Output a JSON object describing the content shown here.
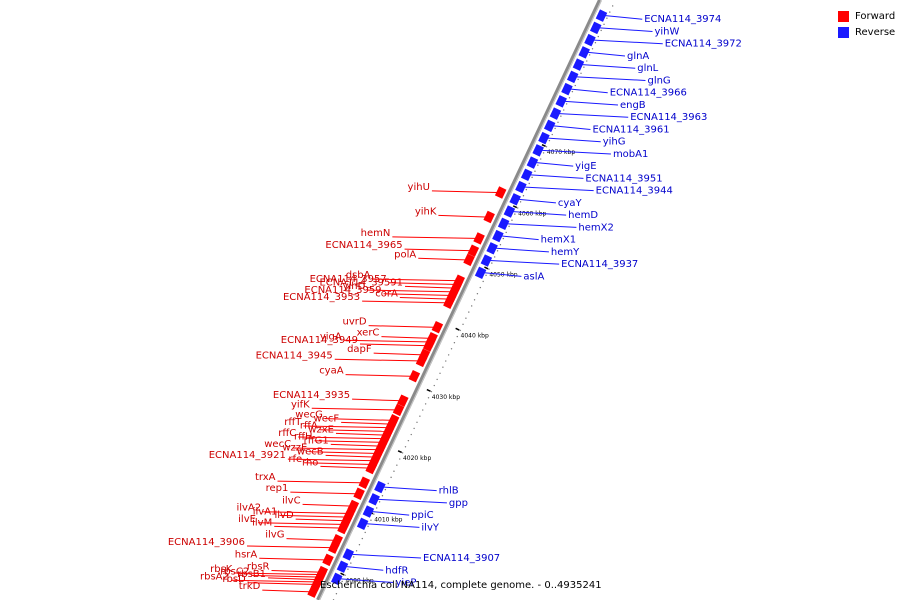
{
  "caption": "Escherichia coli NA114, complete genome. - 0..4935241",
  "colors": {
    "forward": "#ff0000",
    "reverse": "#1a1aff",
    "forward_label": "#cc0000",
    "reverse_label": "#0000cc",
    "backbone": "#8a8a8a"
  },
  "legend": [
    {
      "label": "Forward",
      "color": "#ff0000"
    },
    {
      "label": "Reverse",
      "color": "#1a1aff"
    }
  ],
  "map": {
    "start_kbp": 3995,
    "end_kbp": 4093,
    "ticks": [
      {
        "kbp": 4000,
        "label": "4000 kbp"
      },
      {
        "kbp": 4010,
        "label": "4010 kbp"
      },
      {
        "kbp": 4020,
        "label": "4020 kbp"
      },
      {
        "kbp": 4030,
        "label": "4030 kbp"
      },
      {
        "kbp": 4040,
        "label": "4040 kbp"
      },
      {
        "kbp": 4050,
        "label": "4050 kbp"
      },
      {
        "kbp": 4060,
        "label": "4060 kbp"
      },
      {
        "kbp": 4070,
        "label": "4070 kbp"
      }
    ]
  },
  "forward_genes": [
    {
      "name": "trkD",
      "kbp": 3995.8
    },
    {
      "name": "rbsD",
      "kbp": 3997.0
    },
    {
      "name": "rbsA2",
      "kbp": 3997.4
    },
    {
      "name": "rbsB1",
      "kbp": 3997.8
    },
    {
      "name": "rbsC2",
      "kbp": 3998.2
    },
    {
      "name": "rbsK",
      "kbp": 3998.6
    },
    {
      "name": "rbsR",
      "kbp": 3999.0
    },
    {
      "name": "hsrA",
      "kbp": 4001.0
    },
    {
      "name": "ECNA114_3906",
      "kbp": 4003.0
    },
    {
      "name": "ilvG",
      "kbp": 4004.2
    },
    {
      "name": "ilvM",
      "kbp": 4006.2
    },
    {
      "name": "ilvE",
      "kbp": 4006.8
    },
    {
      "name": "ilvD",
      "kbp": 4007.4
    },
    {
      "name": "ilvA1",
      "kbp": 4008.0
    },
    {
      "name": "ilvA2",
      "kbp": 4008.6
    },
    {
      "name": "ilvC",
      "kbp": 4009.8
    },
    {
      "name": "rep1",
      "kbp": 4011.8
    },
    {
      "name": "trxA",
      "kbp": 4013.6
    },
    {
      "name": "rho",
      "kbp": 4016.0
    },
    {
      "name": "rfe",
      "kbp": 4016.6
    },
    {
      "name": "ECNA114_3921",
      "kbp": 4017.2
    },
    {
      "name": "wecB",
      "kbp": 4017.8
    },
    {
      "name": "wzzE",
      "kbp": 4018.4
    },
    {
      "name": "wecC",
      "kbp": 4019.0
    },
    {
      "name": "rffG1",
      "kbp": 4019.6
    },
    {
      "name": "rffH",
      "kbp": 4020.2
    },
    {
      "name": "rffC",
      "kbp": 4020.8
    },
    {
      "name": "wzxE",
      "kbp": 4021.4
    },
    {
      "name": "rffA",
      "kbp": 4022.0
    },
    {
      "name": "rffT",
      "kbp": 4022.6
    },
    {
      "name": "wecF",
      "kbp": 4023.2
    },
    {
      "name": "wecG",
      "kbp": 4023.8
    },
    {
      "name": "yifK",
      "kbp": 4025.5
    },
    {
      "name": "ECNA114_3935",
      "kbp": 4027.0
    },
    {
      "name": "cyaA",
      "kbp": 4031.0
    },
    {
      "name": "ECNA114_3945",
      "kbp": 4033.5
    },
    {
      "name": "dapF",
      "kbp": 4034.5
    },
    {
      "name": "ECNA114_3949",
      "kbp": 4036.0
    },
    {
      "name": "yigA",
      "kbp": 4036.6
    },
    {
      "name": "xerC",
      "kbp": 4037.2
    },
    {
      "name": "uvrD",
      "kbp": 4039.0
    },
    {
      "name": "ECNA114_3953",
      "kbp": 4043.0
    },
    {
      "name": "corA",
      "kbp": 4043.6
    },
    {
      "name": "ECNA114_3959",
      "kbp": 4044.2
    },
    {
      "name": "yihD",
      "kbp": 4044.8
    },
    {
      "name": "ECNA114_39591",
      "kbp": 4045.4
    },
    {
      "name": "ECNA114_3957",
      "kbp": 4046.0
    },
    {
      "name": "dsbA",
      "kbp": 4046.6
    },
    {
      "name": "polA",
      "kbp": 4050.0
    },
    {
      "name": "ECNA114_3965",
      "kbp": 4051.5
    },
    {
      "name": "hemN",
      "kbp": 4053.5
    },
    {
      "name": "yihK",
      "kbp": 4057.0
    },
    {
      "name": "yihU",
      "kbp": 4061.0
    }
  ],
  "reverse_genes": [
    {
      "name": "ECNA114_3974",
      "kbp": 4091.0
    },
    {
      "name": "yihW",
      "kbp": 4089.0
    },
    {
      "name": "ECNA114_3972",
      "kbp": 4087.0
    },
    {
      "name": "glnA",
      "kbp": 4085.0
    },
    {
      "name": "glnL",
      "kbp": 4083.0
    },
    {
      "name": "glnG",
      "kbp": 4081.0
    },
    {
      "name": "ECNA114_3966",
      "kbp": 4079.0
    },
    {
      "name": "engB",
      "kbp": 4077.0
    },
    {
      "name": "ECNA114_3963",
      "kbp": 4075.0
    },
    {
      "name": "ECNA114_3961",
      "kbp": 4073.0
    },
    {
      "name": "yihG",
      "kbp": 4071.0
    },
    {
      "name": "mobA1",
      "kbp": 4069.0
    },
    {
      "name": "yigE",
      "kbp": 4067.0
    },
    {
      "name": "ECNA114_3951",
      "kbp": 4065.0
    },
    {
      "name": "ECNA114_3944",
      "kbp": 4063.0
    },
    {
      "name": "cyaY",
      "kbp": 4061.0
    },
    {
      "name": "hemD",
      "kbp": 4059.0
    },
    {
      "name": "hemX2",
      "kbp": 4057.0
    },
    {
      "name": "hemX1",
      "kbp": 4055.0
    },
    {
      "name": "hemY",
      "kbp": 4053.0
    },
    {
      "name": "ECNA114_3937",
      "kbp": 4051.0
    },
    {
      "name": "aslA",
      "kbp": 4049.0
    },
    {
      "name": "rhlB",
      "kbp": 4014.0
    },
    {
      "name": "gpp",
      "kbp": 4012.0
    },
    {
      "name": "ppiC",
      "kbp": 4010.0
    },
    {
      "name": "ilvY",
      "kbp": 4008.0
    },
    {
      "name": "ECNA114_3907",
      "kbp": 4003.0
    },
    {
      "name": "hdfR",
      "kbp": 4001.0
    },
    {
      "name": "yieP",
      "kbp": 3999.0
    }
  ]
}
